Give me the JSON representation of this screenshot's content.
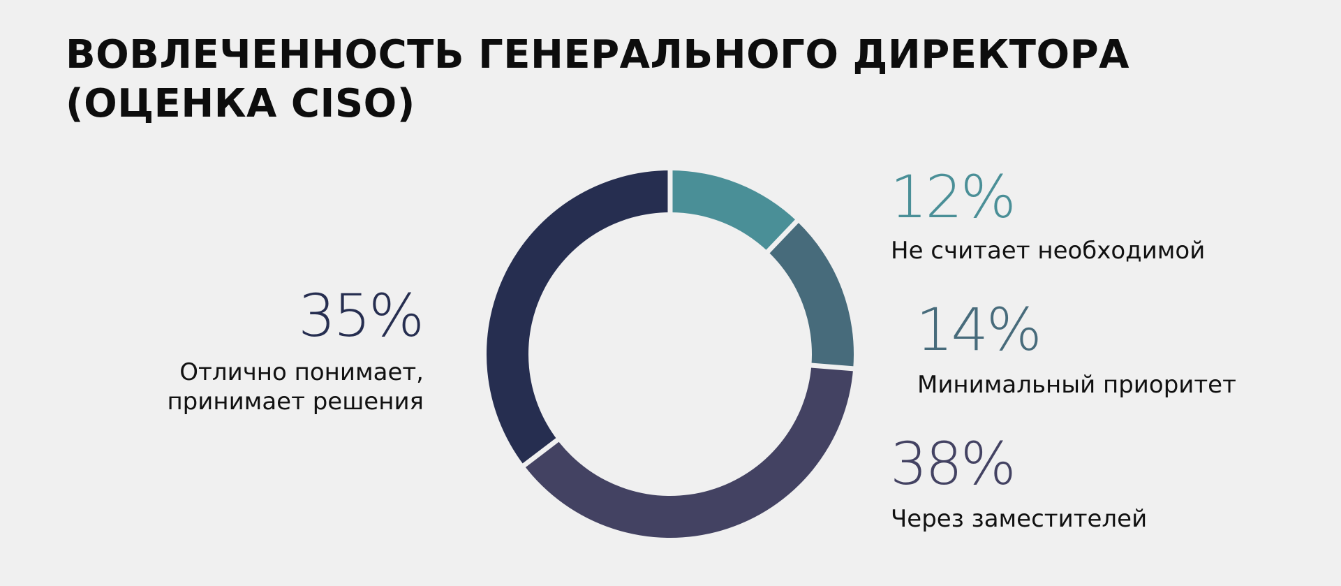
{
  "title": {
    "line1": "ВОВЛЕЧЕННОСТЬ ГЕНЕРАЛЬНОГО ДИРЕКТОРА",
    "line2": "(ОЦЕНКА CISO)"
  },
  "chart_data": {
    "type": "pie",
    "donut": true,
    "title": "ВОВЛЕЧЕННОСТЬ ГЕНЕРАЛЬНОГО ДИРЕКТОРА (ОЦЕНКА CISO)",
    "slices": [
      {
        "label": "Не считает необходимой",
        "value": 12,
        "display": "12%",
        "color": "#4a8f97"
      },
      {
        "label": "Минимальный приоритет",
        "value": 14,
        "display": "14%",
        "color": "#476b7b"
      },
      {
        "label": "Через заместителей",
        "value": 38,
        "display": "38%",
        "color": "#434262"
      },
      {
        "label_lines": [
          "Отлично понимает,",
          "принимает решения"
        ],
        "label": "Отлично понимает, принимает решения",
        "value": 35,
        "display": "35%",
        "color": "#262e50"
      }
    ]
  }
}
